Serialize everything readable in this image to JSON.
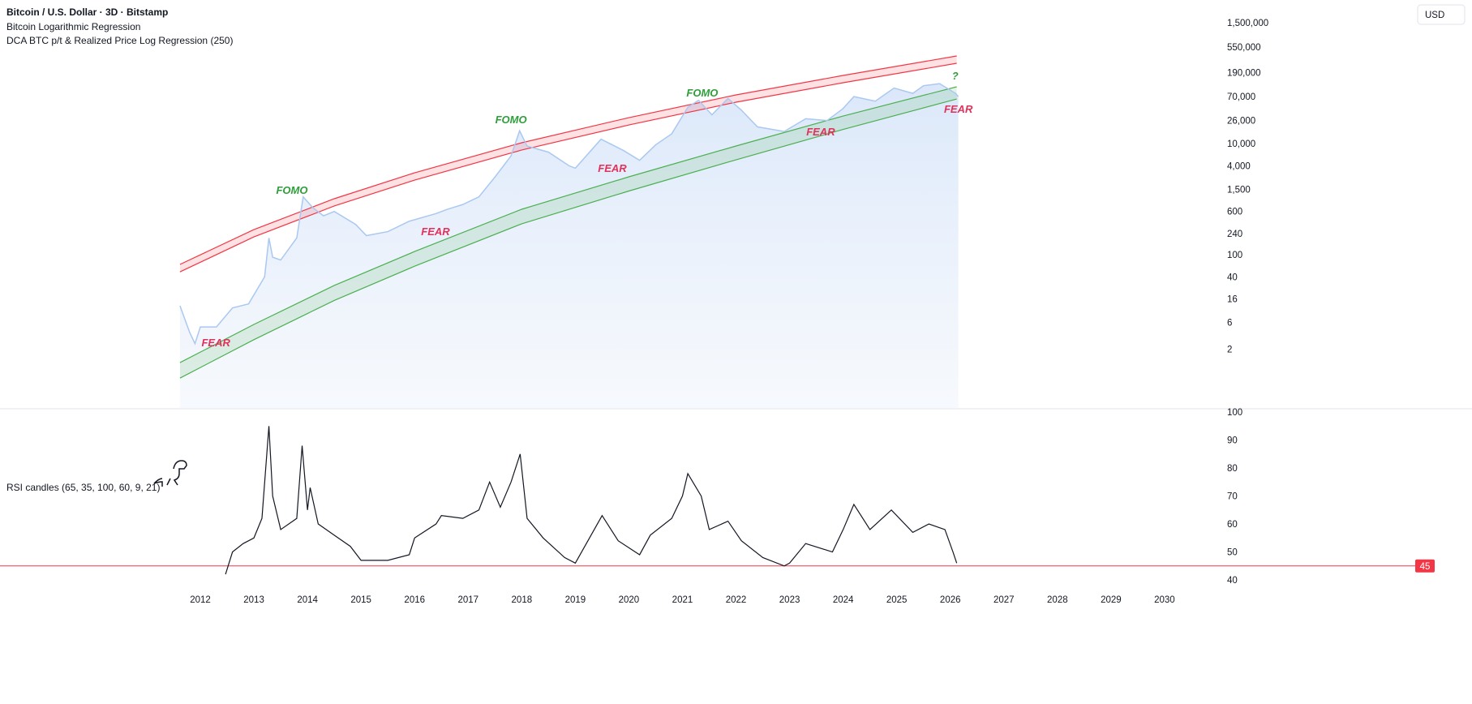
{
  "chart_data": [
    {
      "type": "line",
      "title": "Bitcoin / U.S. Dollar · 3D · Bitstamp",
      "indicators": [
        "Bitcoin Logarithmic Regression",
        "DCA BTC p/t & Realized Price Log Regression (250)"
      ],
      "currency": "USD",
      "log_scale": true,
      "xlim": [
        2008.26,
        2030.97
      ],
      "ylim": [
        0.174,
        3840000
      ],
      "yticks": [
        {
          "value": 2,
          "label": "2"
        },
        {
          "value": 6,
          "label": "6"
        },
        {
          "value": 16,
          "label": "16"
        },
        {
          "value": 40,
          "label": "40"
        },
        {
          "value": 100,
          "label": "100"
        },
        {
          "value": 240,
          "label": "240"
        },
        {
          "value": 600,
          "label": "600"
        },
        {
          "value": 1500,
          "label": "1,500"
        },
        {
          "value": 4000,
          "label": "4,000"
        },
        {
          "value": 10000,
          "label": "10,000"
        },
        {
          "value": 26000,
          "label": "26,000"
        },
        {
          "value": 70000,
          "label": "70,000"
        },
        {
          "value": 190000,
          "label": "190,000"
        },
        {
          "value": 550000,
          "label": "550,000"
        },
        {
          "value": 1500000,
          "label": "1,500,000"
        }
      ],
      "price": {
        "color": "#aac8f0",
        "x": [
          2011.62,
          2011.8,
          2011.9,
          2012.0,
          2012.3,
          2012.6,
          2012.9,
          2013.2,
          2013.28,
          2013.35,
          2013.5,
          2013.8,
          2013.92,
          2014.1,
          2014.3,
          2014.5,
          2014.9,
          2015.1,
          2015.5,
          2015.9,
          2016.4,
          2016.6,
          2016.9,
          2017.2,
          2017.5,
          2017.8,
          2017.96,
          2018.1,
          2018.5,
          2018.88,
          2019.0,
          2019.48,
          2019.9,
          2020.2,
          2020.5,
          2020.8,
          2021.1,
          2021.3,
          2021.55,
          2021.85,
          2022.1,
          2022.4,
          2022.9,
          2023.3,
          2023.7,
          2023.99,
          2024.2,
          2024.6,
          2024.95,
          2025.3,
          2025.5,
          2025.8,
          2026.1,
          2026.15
        ],
        "values": [
          12,
          4,
          2.5,
          5,
          5,
          11,
          13,
          40,
          200,
          90,
          80,
          200,
          1100,
          700,
          500,
          600,
          350,
          220,
          260,
          400,
          550,
          650,
          800,
          1100,
          2500,
          6000,
          17000,
          9000,
          7000,
          4000,
          3600,
          12000,
          7500,
          5000,
          9500,
          15000,
          45000,
          60000,
          33000,
          65000,
          40000,
          20000,
          16500,
          28000,
          26000,
          42000,
          70000,
          58000,
          100000,
          80000,
          110000,
          120000,
          80000,
          70000
        ]
      },
      "band_x": [
        2011.62,
        2013,
        2014.5,
        2016,
        2018,
        2020,
        2022,
        2024,
        2026.12
      ],
      "bands": [
        {
          "color": "#f23645",
          "upper": [
            66.8,
            283,
            1017,
            2980,
            10350,
            29300,
            75200,
            168400,
            377300
          ],
          "lower": [
            49,
            209,
            752,
            2200,
            7650,
            21600,
            55600,
            124400,
            278800
          ]
        },
        {
          "color": "#4caf50",
          "upper": [
            1.14,
            5.55,
            27.9,
            114,
            657,
            2520,
            9040,
            31350,
            105200
          ],
          "lower": [
            0.6,
            2.95,
            15,
            62,
            360,
            1400,
            5100,
            18000,
            63500
          ]
        }
      ],
      "annotations": [
        {
          "text": "FEAR",
          "x": 2012.29,
          "y": 2.65,
          "color": "#e0315a"
        },
        {
          "text": "FOMO",
          "x": 2013.71,
          "y": 1470,
          "color": "#2e9e3a"
        },
        {
          "text": "FEAR",
          "x": 2016.39,
          "y": 265,
          "color": "#e0315a"
        },
        {
          "text": "FOMO",
          "x": 2017.8,
          "y": 27400,
          "color": "#2e9e3a"
        },
        {
          "text": "FEAR",
          "x": 2019.69,
          "y": 3650,
          "color": "#e0315a"
        },
        {
          "text": "FOMO",
          "x": 2021.37,
          "y": 83200,
          "color": "#2e9e3a"
        },
        {
          "text": "FEAR",
          "x": 2023.58,
          "y": 16560,
          "color": "#e0315a"
        },
        {
          "text": "?",
          "x": 2026.09,
          "y": 168000,
          "color": "#2e9e3a"
        },
        {
          "text": "FEAR",
          "x": 2026.15,
          "y": 42450,
          "color": "#e0315a"
        }
      ]
    },
    {
      "type": "line",
      "title": "RSI candles (65, 35, 100, 60, 9, 21)",
      "xlim": [
        2008.26,
        2030.97
      ],
      "ylim": [
        37.1,
        100.9
      ],
      "xticks": [
        2012,
        2013,
        2014,
        2015,
        2016,
        2017,
        2018,
        2019,
        2020,
        2021,
        2022,
        2023,
        2024,
        2025,
        2026,
        2027,
        2028,
        2029,
        2030
      ],
      "yticks": [
        40,
        50,
        60,
        70,
        80,
        90,
        100
      ],
      "hline": 45,
      "hline_color": "#f23645",
      "color": "#131722",
      "x": [
        2012.47,
        2012.6,
        2012.8,
        2013.0,
        2013.15,
        2013.28,
        2013.35,
        2013.5,
        2013.8,
        2013.9,
        2014.0,
        2014.05,
        2014.2,
        2014.5,
        2014.8,
        2015.0,
        2015.5,
        2015.9,
        2016.0,
        2016.4,
        2016.5,
        2016.9,
        2017.2,
        2017.4,
        2017.6,
        2017.8,
        2017.97,
        2018.1,
        2018.4,
        2018.8,
        2019.0,
        2019.5,
        2019.8,
        2020.2,
        2020.4,
        2020.8,
        2021.0,
        2021.1,
        2021.35,
        2021.5,
        2021.85,
        2022.1,
        2022.5,
        2022.9,
        2023.0,
        2023.3,
        2023.8,
        2024.0,
        2024.2,
        2024.5,
        2024.9,
        2025.3,
        2025.6,
        2025.9,
        2026.05,
        2026.12
      ],
      "values": [
        42,
        50,
        53,
        55,
        62,
        95,
        70,
        58,
        62,
        88,
        65,
        73,
        60,
        56,
        52,
        47,
        47,
        49,
        55,
        60,
        63,
        62,
        65,
        75,
        66,
        75,
        85,
        62,
        55,
        48,
        46,
        63,
        54,
        49,
        56,
        62,
        70,
        78,
        70,
        58,
        61,
        54,
        48,
        45,
        46,
        53,
        50,
        58,
        67,
        58,
        65,
        57,
        60,
        58,
        50,
        46
      ]
    }
  ]
}
